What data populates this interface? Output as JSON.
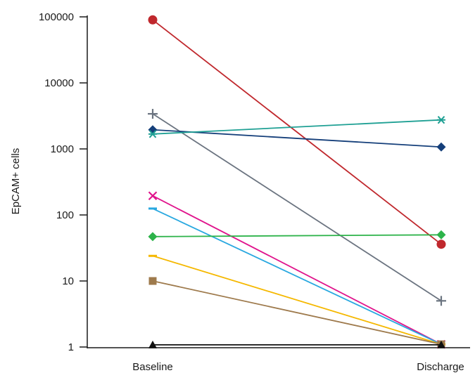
{
  "chart_data": {
    "type": "line",
    "title": "",
    "xlabel": "",
    "ylabel": "EpCAM+ cells",
    "yscale": "log",
    "ylim": [
      1,
      100000
    ],
    "yticks": [
      1,
      10,
      100,
      1000,
      10000,
      100000
    ],
    "ytick_labels": [
      "1",
      "10",
      "100",
      "1000",
      "10000",
      "100000"
    ],
    "categories": [
      "Baseline",
      "Discharge"
    ],
    "grid": false,
    "legend": "none",
    "series": [
      {
        "marker": "circle",
        "color": "#c0282d",
        "values": [
          90000,
          36
        ]
      },
      {
        "marker": "plus",
        "color": "#6b7480",
        "values": [
          3400,
          5
        ]
      },
      {
        "marker": "diamond",
        "color": "#153f7a",
        "values": [
          1950,
          1070
        ]
      },
      {
        "marker": "asterisk",
        "color": "#1fa094",
        "values": [
          1680,
          2750
        ]
      },
      {
        "marker": "x",
        "color": "#e0148c",
        "values": [
          195,
          1.1
        ]
      },
      {
        "marker": "dash",
        "color": "#29a8e0",
        "values": [
          125,
          1.1
        ]
      },
      {
        "marker": "diamond",
        "color": "#2db34a",
        "values": [
          47,
          50
        ]
      },
      {
        "marker": "dash",
        "color": "#f5b800",
        "values": [
          24,
          1.1
        ]
      },
      {
        "marker": "square",
        "color": "#9e7a4c",
        "values": [
          10,
          1.1
        ]
      },
      {
        "marker": "triangle",
        "color": "#111111",
        "values": [
          1.08,
          1.08
        ]
      }
    ]
  }
}
